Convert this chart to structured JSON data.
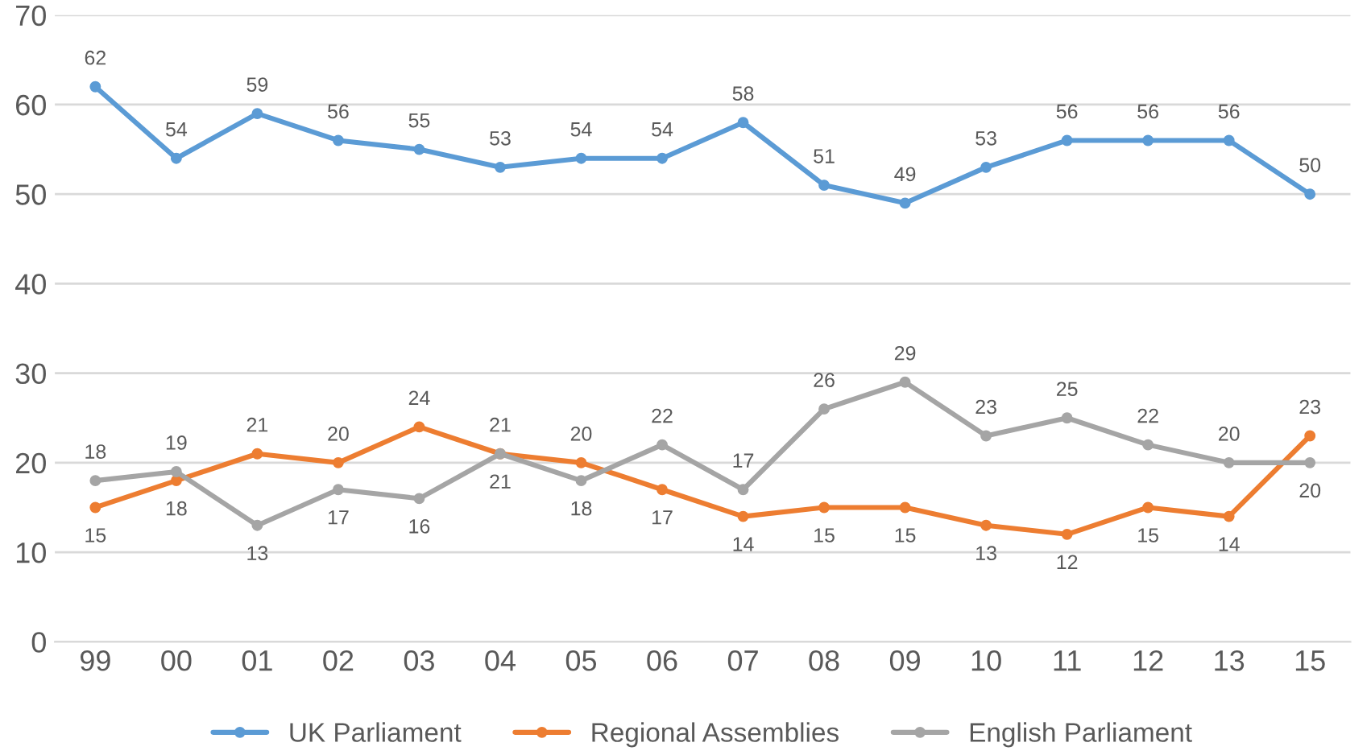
{
  "chart_data": {
    "type": "line",
    "categories": [
      "99",
      "00",
      "01",
      "02",
      "03",
      "04",
      "05",
      "06",
      "07",
      "08",
      "09",
      "10",
      "11",
      "12",
      "13",
      "15"
    ],
    "series": [
      {
        "name": "UK Parliament",
        "color": "#5b9bd5",
        "values": [
          62,
          54,
          59,
          56,
          55,
          53,
          54,
          54,
          58,
          51,
          49,
          53,
          56,
          56,
          56,
          50
        ]
      },
      {
        "name": "Regional Assemblies",
        "color": "#ed7d31",
        "values": [
          15,
          18,
          21,
          20,
          24,
          21,
          20,
          17,
          14,
          15,
          15,
          13,
          12,
          15,
          14,
          23
        ]
      },
      {
        "name": "English Parliament",
        "color": "#a5a5a5",
        "values": [
          18,
          19,
          13,
          17,
          16,
          21,
          18,
          22,
          17,
          26,
          29,
          23,
          25,
          22,
          20,
          20
        ]
      }
    ],
    "ylim": [
      0,
      70
    ],
    "yticks": [
      0,
      10,
      20,
      30,
      40,
      50,
      60,
      70
    ],
    "grid": "y",
    "legend": "bottom",
    "marker": "circle",
    "line_style": "solid",
    "data_labels": true
  }
}
